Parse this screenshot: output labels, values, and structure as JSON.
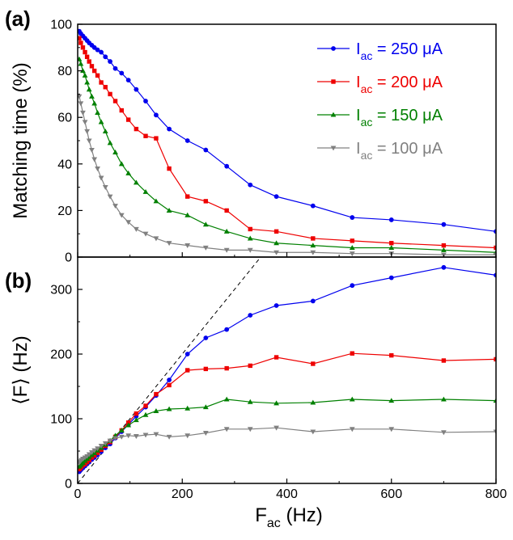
{
  "figure": {
    "panel_a_label": "(a)",
    "panel_b_label": "(b)"
  },
  "chart_data": [
    {
      "type": "line",
      "panel": "a",
      "title": "",
      "xlabel": "",
      "ylabel": "Matching time (%)",
      "xlim": [
        0,
        800
      ],
      "ylim": [
        0,
        100
      ],
      "xticks": [
        0,
        200,
        400,
        600,
        800
      ],
      "yticks": [
        0,
        20,
        40,
        60,
        80,
        100
      ],
      "legend_position": "top-right",
      "series": [
        {
          "name": "I_ac = 250 μA",
          "legend": {
            "main": "I",
            "sub": "ac",
            "rest": " = 250 μA"
          },
          "color": "#0000ee",
          "marker": "circle",
          "x": [
            3,
            6,
            10,
            14,
            18,
            22,
            27,
            32,
            38,
            45,
            53,
            62,
            72,
            84,
            97,
            112,
            130,
            150,
            175,
            210,
            245,
            285,
            330,
            380,
            450,
            525,
            600,
            700,
            800
          ],
          "y": [
            97,
            96,
            95,
            94,
            93,
            92,
            91,
            90,
            89,
            88,
            86,
            84,
            81,
            79,
            76,
            72,
            67,
            61,
            55,
            50,
            46,
            39,
            31,
            26,
            22,
            17,
            16,
            14,
            11
          ]
        },
        {
          "name": "I_ac = 200 μA",
          "legend": {
            "main": "I",
            "sub": "ac",
            "rest": " = 200 μA"
          },
          "color": "#ee0000",
          "marker": "square",
          "x": [
            3,
            6,
            10,
            14,
            18,
            22,
            27,
            32,
            38,
            45,
            53,
            62,
            72,
            84,
            97,
            112,
            130,
            150,
            175,
            210,
            245,
            285,
            330,
            380,
            450,
            525,
            600,
            700,
            800
          ],
          "y": [
            94,
            92,
            90,
            88,
            86,
            84,
            82,
            80,
            78,
            75,
            73,
            70,
            67,
            63,
            59,
            55,
            52,
            51,
            38,
            26,
            24,
            20,
            12,
            11,
            8,
            7,
            6,
            5,
            4
          ]
        },
        {
          "name": "I_ac = 150 μA",
          "legend": {
            "main": "I",
            "sub": "ac",
            "rest": " = 150 μA"
          },
          "color": "#008000",
          "marker": "triangle-up",
          "x": [
            3,
            6,
            10,
            14,
            18,
            22,
            27,
            32,
            38,
            45,
            53,
            62,
            72,
            84,
            97,
            112,
            130,
            150,
            175,
            210,
            245,
            285,
            330,
            380,
            450,
            525,
            600,
            700,
            800
          ],
          "y": [
            85,
            83,
            80,
            78,
            75,
            72,
            69,
            66,
            62,
            58,
            54,
            49,
            45,
            40,
            36,
            32,
            28,
            24,
            20,
            18,
            14,
            11,
            8,
            6,
            5,
            4,
            4,
            3,
            2
          ]
        },
        {
          "name": "I_ac = 100 μA",
          "legend": {
            "main": "I",
            "sub": "ac",
            "rest": " = 100 μA"
          },
          "color": "#808080",
          "marker": "triangle-down",
          "x": [
            3,
            6,
            10,
            14,
            18,
            22,
            27,
            32,
            38,
            45,
            53,
            62,
            72,
            84,
            97,
            112,
            130,
            150,
            175,
            210,
            245,
            285,
            330,
            380,
            450,
            525,
            600,
            700,
            800
          ],
          "y": [
            69,
            66,
            62,
            58,
            54,
            50,
            46,
            42,
            38,
            34,
            30,
            26,
            22,
            18,
            15,
            12,
            10,
            8,
            6,
            5,
            4,
            3,
            3,
            2,
            2,
            1.5,
            1.5,
            1,
            1
          ]
        }
      ]
    },
    {
      "type": "line",
      "panel": "b",
      "title": "",
      "xlabel": {
        "main": "F",
        "sub": "ac",
        "rest": " (Hz)"
      },
      "ylabel": "⟨F⟩ (Hz)",
      "xlim": [
        0,
        800
      ],
      "ylim": [
        0,
        350
      ],
      "xticks": [
        0,
        200,
        400,
        600,
        800
      ],
      "yticks": [
        0,
        100,
        200,
        300
      ],
      "reference_line": {
        "type": "y = x",
        "style": "dashed",
        "color": "#000000"
      },
      "series": [
        {
          "name": "I_ac = 250 μA",
          "color": "#0000ee",
          "marker": "circle",
          "x": [
            3,
            5,
            7,
            10,
            14,
            18,
            22,
            27,
            32,
            38,
            45,
            53,
            62,
            72,
            84,
            97,
            112,
            130,
            150,
            175,
            210,
            245,
            285,
            330,
            380,
            450,
            525,
            600,
            700,
            800
          ],
          "y": [
            18,
            20,
            22,
            24,
            27,
            30,
            33,
            37,
            40,
            44,
            49,
            55,
            61,
            70,
            80,
            91,
            104,
            118,
            136,
            160,
            200,
            225,
            238,
            260,
            275,
            282,
            306,
            318,
            334,
            322
          ]
        },
        {
          "name": "I_ac = 200 μA",
          "color": "#ee0000",
          "marker": "square",
          "x": [
            3,
            5,
            7,
            10,
            14,
            18,
            22,
            27,
            32,
            38,
            45,
            53,
            62,
            72,
            84,
            97,
            112,
            130,
            150,
            175,
            210,
            245,
            285,
            330,
            380,
            450,
            525,
            600,
            700,
            800
          ],
          "y": [
            22,
            24,
            26,
            28,
            30,
            33,
            36,
            40,
            43,
            47,
            52,
            58,
            64,
            72,
            82,
            94,
            108,
            120,
            138,
            152,
            175,
            177,
            178,
            182,
            195,
            185,
            201,
            198,
            190,
            192
          ]
        },
        {
          "name": "I_ac = 150 μA",
          "color": "#008000",
          "marker": "triangle-up",
          "x": [
            3,
            5,
            7,
            10,
            14,
            18,
            22,
            27,
            32,
            38,
            45,
            53,
            62,
            72,
            84,
            97,
            112,
            130,
            150,
            175,
            210,
            245,
            285,
            330,
            380,
            450,
            525,
            600,
            700,
            800
          ],
          "y": [
            26,
            28,
            30,
            32,
            35,
            38,
            41,
            44,
            47,
            51,
            55,
            60,
            66,
            74,
            82,
            90,
            98,
            106,
            112,
            115,
            116,
            118,
            130,
            126,
            124,
            125,
            130,
            128,
            130,
            128
          ]
        },
        {
          "name": "I_ac = 100 μA",
          "color": "#808080",
          "marker": "triangle-down",
          "x": [
            3,
            5,
            7,
            10,
            14,
            18,
            22,
            27,
            32,
            38,
            45,
            53,
            62,
            72,
            84,
            97,
            112,
            130,
            150,
            175,
            210,
            245,
            285,
            330,
            380,
            450,
            525,
            600,
            700,
            800
          ],
          "y": [
            32,
            34,
            36,
            38,
            40,
            42,
            45,
            48,
            51,
            54,
            58,
            62,
            66,
            70,
            72,
            74,
            73,
            75,
            76,
            72,
            74,
            78,
            84,
            84,
            86,
            80,
            84,
            84,
            79,
            80
          ]
        }
      ]
    }
  ]
}
